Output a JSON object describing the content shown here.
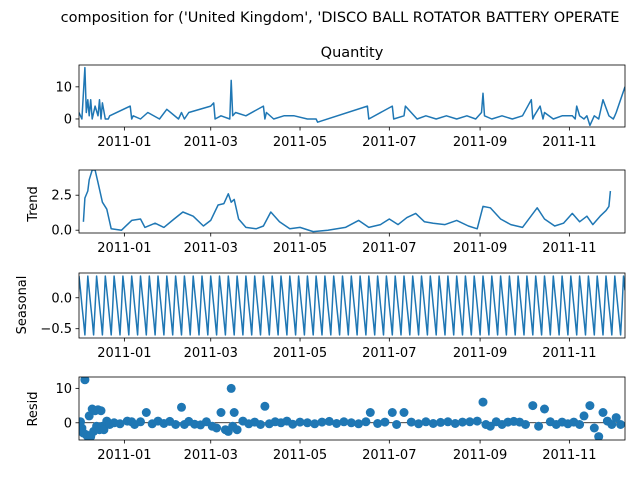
{
  "figure": {
    "suptitle": "composition for ('United Kingdom', 'DISCO BALL ROTATOR BATTERY OPERATE",
    "line_color": "#1f77b4",
    "x_ticks": [
      "2011-01",
      "2011-03",
      "2011-05",
      "2011-07",
      "2011-09",
      "2011-11"
    ],
    "x_range": [
      "2010-12-01",
      "2011-12-09"
    ]
  },
  "chart_data": [
    {
      "type": "line",
      "panel": "observed",
      "title": "Quantity",
      "ylabel": "",
      "ylim": [
        -2.5,
        16.8
      ],
      "yticks": [
        0,
        10
      ],
      "ytick_labels": [
        "0",
        "10"
      ],
      "x": [
        "2010-12-01",
        "2010-12-03",
        "2010-12-05",
        "2010-12-06",
        "2010-12-07",
        "2010-12-08",
        "2010-12-09",
        "2010-12-10",
        "2010-12-12",
        "2010-12-14",
        "2010-12-15",
        "2010-12-16",
        "2010-12-17",
        "2010-12-19",
        "2010-12-21",
        "2010-12-22",
        "2011-01-05",
        "2011-01-06",
        "2011-01-07",
        "2011-01-12",
        "2011-01-17",
        "2011-01-25",
        "2011-01-30",
        "2011-02-07",
        "2011-02-09",
        "2011-02-11",
        "2011-02-14",
        "2011-03-01",
        "2011-03-03",
        "2011-03-04",
        "2011-03-08",
        "2011-03-14",
        "2011-03-15",
        "2011-03-16",
        "2011-03-18",
        "2011-03-25",
        "2011-04-06",
        "2011-04-07",
        "2011-04-08",
        "2011-04-13",
        "2011-04-20",
        "2011-04-27",
        "2011-05-06",
        "2011-05-12",
        "2011-05-13",
        "2011-06-16",
        "2011-06-17",
        "2011-07-03",
        "2011-07-04",
        "2011-07-11",
        "2011-07-12",
        "2011-07-20",
        "2011-07-26",
        "2011-08-02",
        "2011-08-09",
        "2011-08-16",
        "2011-08-23",
        "2011-08-29",
        "2011-09-02",
        "2011-09-03",
        "2011-09-04",
        "2011-09-09",
        "2011-09-16",
        "2011-09-23",
        "2011-09-30",
        "2011-10-06",
        "2011-10-07",
        "2011-10-08",
        "2011-10-12",
        "2011-10-14",
        "2011-10-15",
        "2011-10-21",
        "2011-10-27",
        "2011-11-03",
        "2011-11-05",
        "2011-11-06",
        "2011-11-08",
        "2011-11-11",
        "2011-11-13",
        "2011-11-15",
        "2011-11-18",
        "2011-11-21",
        "2011-11-24",
        "2011-11-28",
        "2011-12-01",
        "2011-12-02",
        "2011-12-03",
        "2011-12-09"
      ],
      "values": [
        2,
        0,
        16,
        2,
        6,
        1,
        6,
        0,
        4,
        1,
        6,
        0,
        5,
        0,
        0,
        1,
        4,
        0,
        1,
        0,
        2,
        0,
        3,
        0,
        2,
        0,
        2,
        4,
        5,
        0,
        1,
        0,
        12,
        1,
        2,
        1,
        4,
        0,
        2,
        0,
        1,
        1,
        0,
        0,
        -1,
        4,
        0,
        4,
        0,
        1,
        4,
        0,
        1,
        0,
        1,
        0,
        1,
        0,
        2,
        8,
        1,
        0,
        1,
        0,
        1,
        6,
        0,
        1,
        4,
        0,
        2,
        0,
        1,
        1,
        0,
        4,
        1,
        0,
        1,
        -2,
        1,
        0,
        6,
        1,
        0,
        1,
        2,
        10
      ]
    },
    {
      "type": "line",
      "panel": "trend",
      "ylabel": "Trend",
      "ylim": [
        -0.2,
        4.3
      ],
      "yticks": [
        0.0,
        2.5
      ],
      "ytick_labels": [
        "0.0",
        "2.5"
      ],
      "x": [
        "2010-12-04",
        "2010-12-05",
        "2010-12-07",
        "2010-12-08",
        "2010-12-10",
        "2010-12-12",
        "2010-12-14",
        "2010-12-17",
        "2010-12-20",
        "2010-12-23",
        "2010-12-30",
        "2011-01-06",
        "2011-01-12",
        "2011-01-15",
        "2011-01-22",
        "2011-01-28",
        "2011-02-04",
        "2011-02-10",
        "2011-02-17",
        "2011-02-24",
        "2011-03-01",
        "2011-03-06",
        "2011-03-10",
        "2011-03-13",
        "2011-03-15",
        "2011-03-17",
        "2011-03-20",
        "2011-03-25",
        "2011-04-01",
        "2011-04-06",
        "2011-04-11",
        "2011-04-17",
        "2011-04-24",
        "2011-05-01",
        "2011-05-10",
        "2011-05-20",
        "2011-06-01",
        "2011-06-10",
        "2011-06-17",
        "2011-06-25",
        "2011-07-01",
        "2011-07-07",
        "2011-07-13",
        "2011-07-19",
        "2011-07-25",
        "2011-07-31",
        "2011-08-08",
        "2011-08-16",
        "2011-08-24",
        "2011-08-30",
        "2011-09-03",
        "2011-09-08",
        "2011-09-15",
        "2011-09-22",
        "2011-09-30",
        "2011-10-05",
        "2011-10-10",
        "2011-10-15",
        "2011-10-22",
        "2011-10-28",
        "2011-11-03",
        "2011-11-08",
        "2011-11-13",
        "2011-11-17",
        "2011-11-22",
        "2011-11-26",
        "2011-11-28",
        "2011-11-29"
      ],
      "values": [
        0.6,
        2.3,
        2.8,
        3.6,
        4.3,
        4.3,
        3.4,
        2.0,
        1.5,
        0.1,
        0.0,
        0.7,
        0.8,
        0.2,
        0.5,
        0.2,
        0.8,
        1.3,
        1.0,
        0.3,
        0.7,
        1.8,
        1.9,
        2.6,
        2.0,
        2.2,
        0.8,
        0.2,
        0.1,
        0.3,
        1.3,
        0.6,
        0.1,
        0.2,
        -0.1,
        0.0,
        0.2,
        0.7,
        0.2,
        0.4,
        0.8,
        0.4,
        0.9,
        1.2,
        0.6,
        0.5,
        0.4,
        0.7,
        0.3,
        0.1,
        1.7,
        1.6,
        0.8,
        0.4,
        0.2,
        0.9,
        1.6,
        0.8,
        0.3,
        0.5,
        1.2,
        0.6,
        1.0,
        0.4,
        1.0,
        1.4,
        1.7,
        2.8
      ]
    },
    {
      "type": "line",
      "panel": "seasonal",
      "ylabel": "Seasonal",
      "ylim": [
        -0.65,
        0.4
      ],
      "yticks": [
        -0.5,
        0.0
      ],
      "ytick_labels": [
        "−0.5",
        "0.0"
      ],
      "period_days": 6,
      "cycle_values": [
        0.35,
        0.12,
        -0.12,
        -0.35,
        -0.6,
        -0.15
      ],
      "x_start": "2010-12-01",
      "x_end": "2011-12-09"
    },
    {
      "type": "scatter",
      "panel": "resid",
      "ylabel": "Resid",
      "ylim": [
        -5.0,
        13.3
      ],
      "yticks": [
        0,
        10
      ],
      "ytick_labels": [
        "0",
        "10"
      ],
      "x": [
        "2010-12-02",
        "2010-12-03",
        "2010-12-04",
        "2010-12-05",
        "2010-12-06",
        "2010-12-07",
        "2010-12-08",
        "2010-12-09",
        "2010-12-10",
        "2010-12-11",
        "2010-12-12",
        "2010-12-13",
        "2010-12-14",
        "2010-12-15",
        "2010-12-16",
        "2010-12-17",
        "2010-12-18",
        "2010-12-20",
        "2010-12-22",
        "2010-12-25",
        "2010-12-29",
        "2011-01-03",
        "2011-01-06",
        "2011-01-08",
        "2011-01-12",
        "2011-01-16",
        "2011-01-20",
        "2011-01-24",
        "2011-01-28",
        "2011-02-01",
        "2011-02-05",
        "2011-02-09",
        "2011-02-11",
        "2011-02-14",
        "2011-02-18",
        "2011-02-22",
        "2011-02-26",
        "2011-03-02",
        "2011-03-05",
        "2011-03-08",
        "2011-03-11",
        "2011-03-13",
        "2011-03-15",
        "2011-03-16",
        "2011-03-17",
        "2011-03-19",
        "2011-03-23",
        "2011-03-27",
        "2011-03-31",
        "2011-04-04",
        "2011-04-07",
        "2011-04-10",
        "2011-04-14",
        "2011-04-18",
        "2011-04-22",
        "2011-04-26",
        "2011-05-01",
        "2011-05-06",
        "2011-05-11",
        "2011-05-16",
        "2011-05-21",
        "2011-05-26",
        "2011-05-31",
        "2011-06-05",
        "2011-06-10",
        "2011-06-15",
        "2011-06-18",
        "2011-06-23",
        "2011-06-28",
        "2011-07-03",
        "2011-07-06",
        "2011-07-11",
        "2011-07-16",
        "2011-07-21",
        "2011-07-26",
        "2011-07-31",
        "2011-08-05",
        "2011-08-10",
        "2011-08-15",
        "2011-08-20",
        "2011-08-25",
        "2011-08-30",
        "2011-09-03",
        "2011-09-05",
        "2011-09-08",
        "2011-09-12",
        "2011-09-16",
        "2011-09-20",
        "2011-09-24",
        "2011-09-28",
        "2011-10-02",
        "2011-10-07",
        "2011-10-11",
        "2011-10-15",
        "2011-10-19",
        "2011-10-23",
        "2011-10-27",
        "2011-10-31",
        "2011-11-04",
        "2011-11-08",
        "2011-11-11",
        "2011-11-15",
        "2011-11-18",
        "2011-11-21",
        "2011-11-24",
        "2011-11-27",
        "2011-11-30",
        "2011-12-03",
        "2011-12-06"
      ],
      "values": [
        0.3,
        -1.5,
        -3.0,
        12.5,
        -3.5,
        -4.0,
        2.0,
        -4.0,
        4.0,
        -2.5,
        3.5,
        -1.0,
        3.8,
        -2.0,
        3.5,
        -1.0,
        -2.0,
        0.5,
        -0.5,
        0.0,
        -0.3,
        0.5,
        0.3,
        -0.5,
        0.3,
        3.0,
        -0.3,
        0.5,
        -0.2,
        0.4,
        -0.5,
        4.5,
        -0.5,
        0.4,
        -0.4,
        -0.6,
        0.3,
        -1.0,
        -1.5,
        3.0,
        -2.0,
        -2.5,
        10.0,
        -1.0,
        3.0,
        -2.0,
        0.5,
        -0.3,
        0.2,
        -0.5,
        4.8,
        -0.3,
        0.3,
        0.0,
        0.5,
        -0.4,
        0.2,
        0.0,
        -0.3,
        0.2,
        0.4,
        -0.2,
        0.3,
        0.0,
        -0.3,
        0.3,
        3.0,
        -0.2,
        0.2,
        3.0,
        -0.5,
        3.0,
        0.2,
        -0.3,
        0.3,
        -0.2,
        0.1,
        0.3,
        -0.2,
        0.2,
        0.3,
        0.5,
        6.0,
        -0.5,
        -1.0,
        0.3,
        -0.5,
        0.2,
        0.4,
        0.2,
        -0.5,
        5.0,
        -1.0,
        4.0,
        0.3,
        -0.5,
        0.2,
        -0.3,
        0.2,
        -0.5,
        2.0,
        5.0,
        -1.5,
        -4.0,
        3.0,
        0.5,
        -0.5,
        1.5,
        -0.5
      ]
    }
  ]
}
